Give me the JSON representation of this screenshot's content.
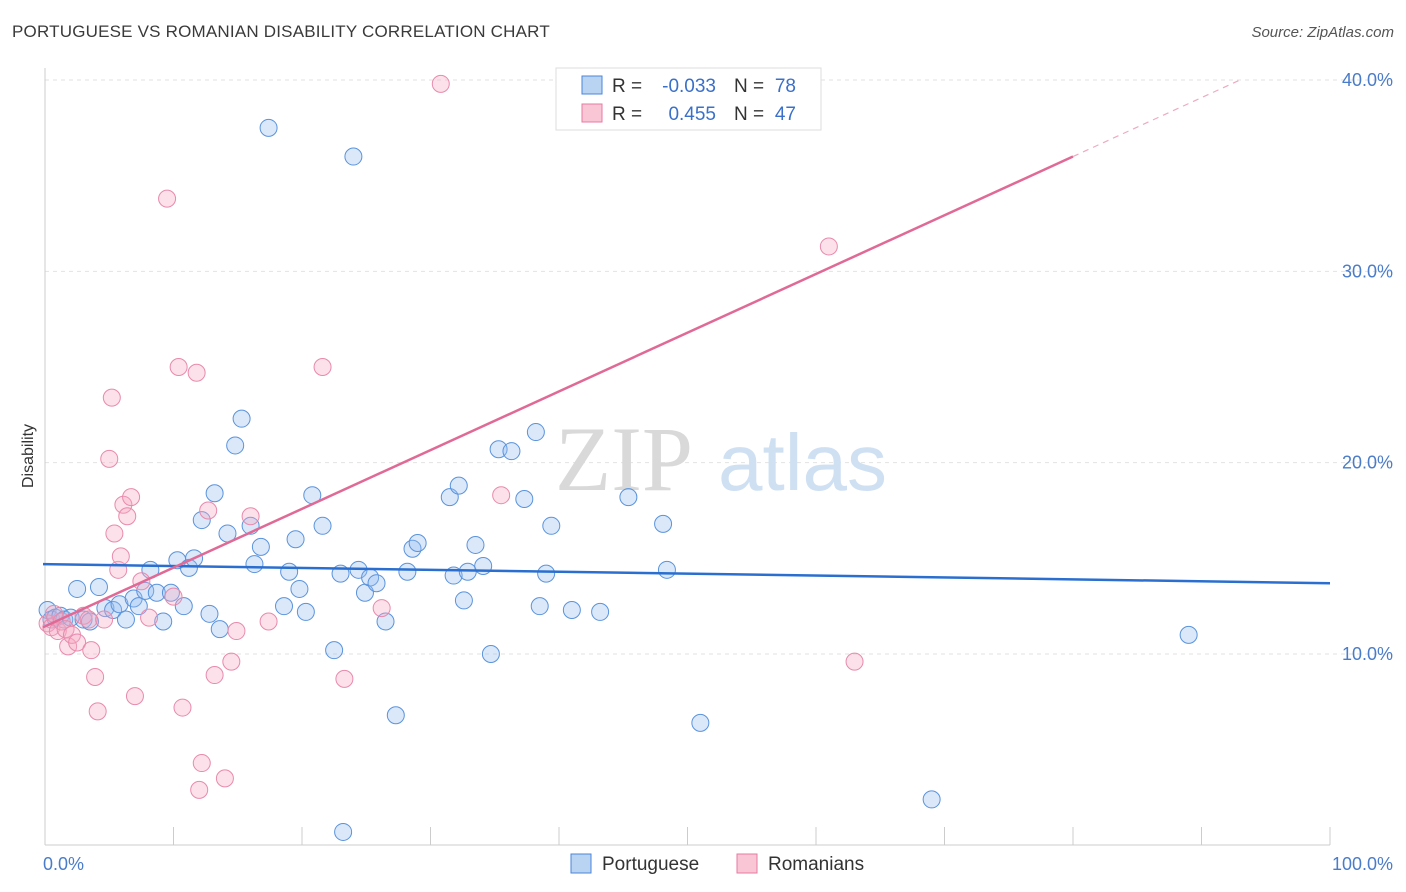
{
  "header": {
    "title": "PORTUGUESE VS ROMANIAN DISABILITY CORRELATION CHART",
    "source": "Source: ZipAtlas.com"
  },
  "watermark": {
    "part1": "ZIP",
    "part2": "atlas"
  },
  "chart_data": {
    "type": "scatter",
    "title": "PORTUGUESE VS ROMANIAN DISABILITY CORRELATION CHART",
    "xlabel": "",
    "ylabel": "Disability",
    "xlim": [
      0,
      100
    ],
    "ylim": [
      0,
      41
    ],
    "x_tick_labels": [
      "0.0%",
      "100.0%"
    ],
    "y_ticks": [
      10,
      20,
      30,
      40
    ],
    "y_tick_labels": [
      "10.0%",
      "20.0%",
      "30.0%",
      "40.0%"
    ],
    "grid": true,
    "legend_position": "top-center",
    "colors": {
      "portuguese": "#4a86d8",
      "romanians": "#e87aa0",
      "portuguese_line": "#2a6fcf",
      "romanians_line": "#e06a95"
    },
    "stats": [
      {
        "r_label": "R =",
        "r_value": "-0.033",
        "n_label": "N =",
        "n_value": "78"
      },
      {
        "r_label": "R =",
        "r_value": "0.455",
        "n_label": "N =",
        "n_value": "47"
      }
    ],
    "series": [
      {
        "name": "Portuguese",
        "trend": {
          "x": [
            0,
            100
          ],
          "y": [
            14.7,
            13.7
          ]
        },
        "points": [
          [
            0.2,
            12.3
          ],
          [
            0.5,
            11.8
          ],
          [
            0.8,
            11.9
          ],
          [
            1.2,
            12.0
          ],
          [
            1.5,
            11.8
          ],
          [
            2.0,
            11.9
          ],
          [
            2.5,
            13.4
          ],
          [
            3.0,
            11.8
          ],
          [
            3.5,
            11.7
          ],
          [
            4.2,
            13.5
          ],
          [
            4.7,
            12.4
          ],
          [
            5.3,
            12.3
          ],
          [
            5.8,
            12.6
          ],
          [
            6.3,
            11.8
          ],
          [
            6.9,
            12.9
          ],
          [
            7.3,
            12.5
          ],
          [
            7.8,
            13.3
          ],
          [
            8.2,
            14.4
          ],
          [
            8.7,
            13.2
          ],
          [
            9.2,
            11.7
          ],
          [
            9.8,
            13.2
          ],
          [
            10.3,
            14.9
          ],
          [
            10.8,
            12.5
          ],
          [
            11.2,
            14.5
          ],
          [
            11.6,
            15.0
          ],
          [
            12.2,
            17.0
          ],
          [
            12.8,
            12.1
          ],
          [
            13.2,
            18.4
          ],
          [
            13.6,
            11.3
          ],
          [
            14.2,
            16.3
          ],
          [
            14.8,
            20.9
          ],
          [
            15.3,
            22.3
          ],
          [
            16.0,
            16.7
          ],
          [
            16.3,
            14.7
          ],
          [
            16.8,
            15.6
          ],
          [
            17.4,
            37.5
          ],
          [
            18.6,
            12.5
          ],
          [
            19.0,
            14.3
          ],
          [
            19.5,
            16.0
          ],
          [
            19.8,
            13.4
          ],
          [
            20.3,
            12.2
          ],
          [
            20.8,
            18.3
          ],
          [
            21.6,
            16.7
          ],
          [
            22.5,
            10.2
          ],
          [
            23.0,
            14.2
          ],
          [
            23.2,
            0.7
          ],
          [
            24.0,
            36.0
          ],
          [
            24.4,
            14.4
          ],
          [
            24.9,
            13.2
          ],
          [
            25.3,
            14.0
          ],
          [
            25.8,
            13.7
          ],
          [
            26.5,
            11.7
          ],
          [
            27.3,
            6.8
          ],
          [
            28.2,
            14.3
          ],
          [
            28.6,
            15.5
          ],
          [
            29.0,
            15.8
          ],
          [
            31.5,
            18.2
          ],
          [
            31.8,
            14.1
          ],
          [
            32.2,
            18.8
          ],
          [
            32.6,
            12.8
          ],
          [
            32.9,
            14.3
          ],
          [
            33.5,
            15.7
          ],
          [
            34.1,
            14.6
          ],
          [
            34.7,
            10.0
          ],
          [
            35.3,
            20.7
          ],
          [
            36.3,
            20.6
          ],
          [
            37.3,
            18.1
          ],
          [
            38.2,
            21.6
          ],
          [
            38.5,
            12.5
          ],
          [
            39.0,
            14.2
          ],
          [
            39.4,
            16.7
          ],
          [
            41.0,
            12.3
          ],
          [
            43.2,
            12.2
          ],
          [
            45.4,
            18.2
          ],
          [
            48.1,
            16.8
          ],
          [
            48.4,
            14.4
          ],
          [
            51.0,
            6.4
          ],
          [
            69.0,
            2.4
          ],
          [
            89.0,
            11.0
          ]
        ]
      },
      {
        "name": "Romanians",
        "trend": {
          "x": [
            0,
            80
          ],
          "y": [
            11.4,
            36.0
          ]
        },
        "trend_dashed": {
          "x": [
            80,
            93
          ],
          "y": [
            36.0,
            40.0
          ]
        },
        "points": [
          [
            0.2,
            11.6
          ],
          [
            0.5,
            11.4
          ],
          [
            0.7,
            12.1
          ],
          [
            1.0,
            11.2
          ],
          [
            1.3,
            11.7
          ],
          [
            1.6,
            11.3
          ],
          [
            1.8,
            10.4
          ],
          [
            2.1,
            11.0
          ],
          [
            2.5,
            10.6
          ],
          [
            3.0,
            12.0
          ],
          [
            3.4,
            11.8
          ],
          [
            3.6,
            10.2
          ],
          [
            3.9,
            8.8
          ],
          [
            4.1,
            7.0
          ],
          [
            4.6,
            11.8
          ],
          [
            5.0,
            20.2
          ],
          [
            5.2,
            23.4
          ],
          [
            5.4,
            16.3
          ],
          [
            5.7,
            14.4
          ],
          [
            5.9,
            15.1
          ],
          [
            6.1,
            17.8
          ],
          [
            6.4,
            17.2
          ],
          [
            6.7,
            18.2
          ],
          [
            7.0,
            7.8
          ],
          [
            7.5,
            13.8
          ],
          [
            8.1,
            11.9
          ],
          [
            9.5,
            33.8
          ],
          [
            10.0,
            13.0
          ],
          [
            10.4,
            25.0
          ],
          [
            10.7,
            7.2
          ],
          [
            11.8,
            24.7
          ],
          [
            12.0,
            2.9
          ],
          [
            12.2,
            4.3
          ],
          [
            12.7,
            17.5
          ],
          [
            13.2,
            8.9
          ],
          [
            14.0,
            3.5
          ],
          [
            14.5,
            9.6
          ],
          [
            14.9,
            11.2
          ],
          [
            16.0,
            17.2
          ],
          [
            17.4,
            11.7
          ],
          [
            21.6,
            25.0
          ],
          [
            23.3,
            8.7
          ],
          [
            26.2,
            12.4
          ],
          [
            30.8,
            39.8
          ],
          [
            35.5,
            18.3
          ],
          [
            61.0,
            31.3
          ],
          [
            63.0,
            9.6
          ]
        ]
      }
    ]
  },
  "bottom_legend": [
    "Portuguese",
    "Romanians"
  ]
}
